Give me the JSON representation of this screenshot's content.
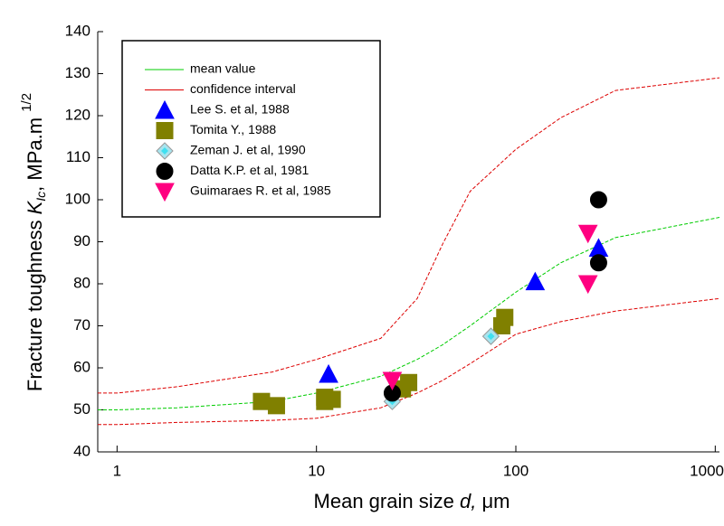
{
  "chart_data": {
    "type": "scatter",
    "xlabel": {
      "text": "Mean grain size",
      "symbol": "d,",
      "unit": "μm"
    },
    "ylabel": {
      "text": "Fracture toughness",
      "symbol": "K",
      "subscript": "Ic",
      "unit": ",  MPa.m",
      "superscript": "1/2"
    },
    "log_x": true,
    "xlim": [
      0.8,
      1050
    ],
    "xticks": [
      1,
      10,
      100,
      1000
    ],
    "ylim": [
      40,
      140
    ],
    "yticks": [
      40,
      50,
      60,
      70,
      80,
      90,
      100,
      110,
      120,
      130,
      140
    ],
    "legend": "upper left",
    "series": [
      {
        "name": "mean value",
        "kind": "line",
        "color": "#00cc00",
        "x": [
          0.8,
          1,
          2,
          6,
          10,
          21,
          32,
          43,
          59,
          100,
          168,
          316,
          1050
        ],
        "values": [
          50,
          50,
          50.5,
          52,
          54,
          58,
          62,
          65.5,
          70,
          78,
          85,
          91,
          95.8
        ]
      },
      {
        "name": "confidence interval",
        "kind": "band",
        "color": "#dd0000",
        "x": [
          0.8,
          1,
          2,
          6,
          10,
          21,
          32,
          43,
          59,
          100,
          168,
          316,
          1050
        ],
        "upper": [
          54,
          54,
          55.5,
          59,
          62,
          67,
          76.5,
          89.5,
          102,
          112,
          119.5,
          126,
          129
        ],
        "lower": [
          46.5,
          46.5,
          47,
          47.5,
          48,
          50.5,
          54,
          57,
          61,
          68,
          71,
          73.5,
          76.5
        ]
      },
      {
        "name": "Lee S. et al, 1988",
        "kind": "points",
        "marker": "triangle-up",
        "color": "#0000ff",
        "x": [
          11.5,
          125,
          260
        ],
        "values": [
          58.5,
          80.5,
          88.5
        ]
      },
      {
        "name": "Tomita Y., 1988",
        "kind": "points",
        "marker": "square",
        "color": "#808000",
        "x": [
          5.3,
          6.3,
          11,
          11,
          12,
          27,
          29,
          85,
          88
        ],
        "values": [
          52,
          51,
          52,
          53,
          52.5,
          55,
          56.5,
          70,
          72
        ]
      },
      {
        "name": "Zeman J. et al, 1990",
        "kind": "points",
        "marker": "diamond",
        "color": "#a8e4ee",
        "x": [
          24,
          75
        ],
        "values": [
          52,
          67.5
        ]
      },
      {
        "name": "Datta K.P. et al, 1981",
        "kind": "points",
        "marker": "circle",
        "color": "#000000",
        "x": [
          24,
          260,
          260
        ],
        "values": [
          54,
          100,
          85
        ]
      },
      {
        "name": "Guimaraes R. et al, 1985",
        "kind": "points",
        "marker": "triangle-down",
        "color": "#ff0080",
        "x": [
          24,
          230,
          230
        ],
        "values": [
          57,
          92,
          80
        ]
      }
    ]
  }
}
